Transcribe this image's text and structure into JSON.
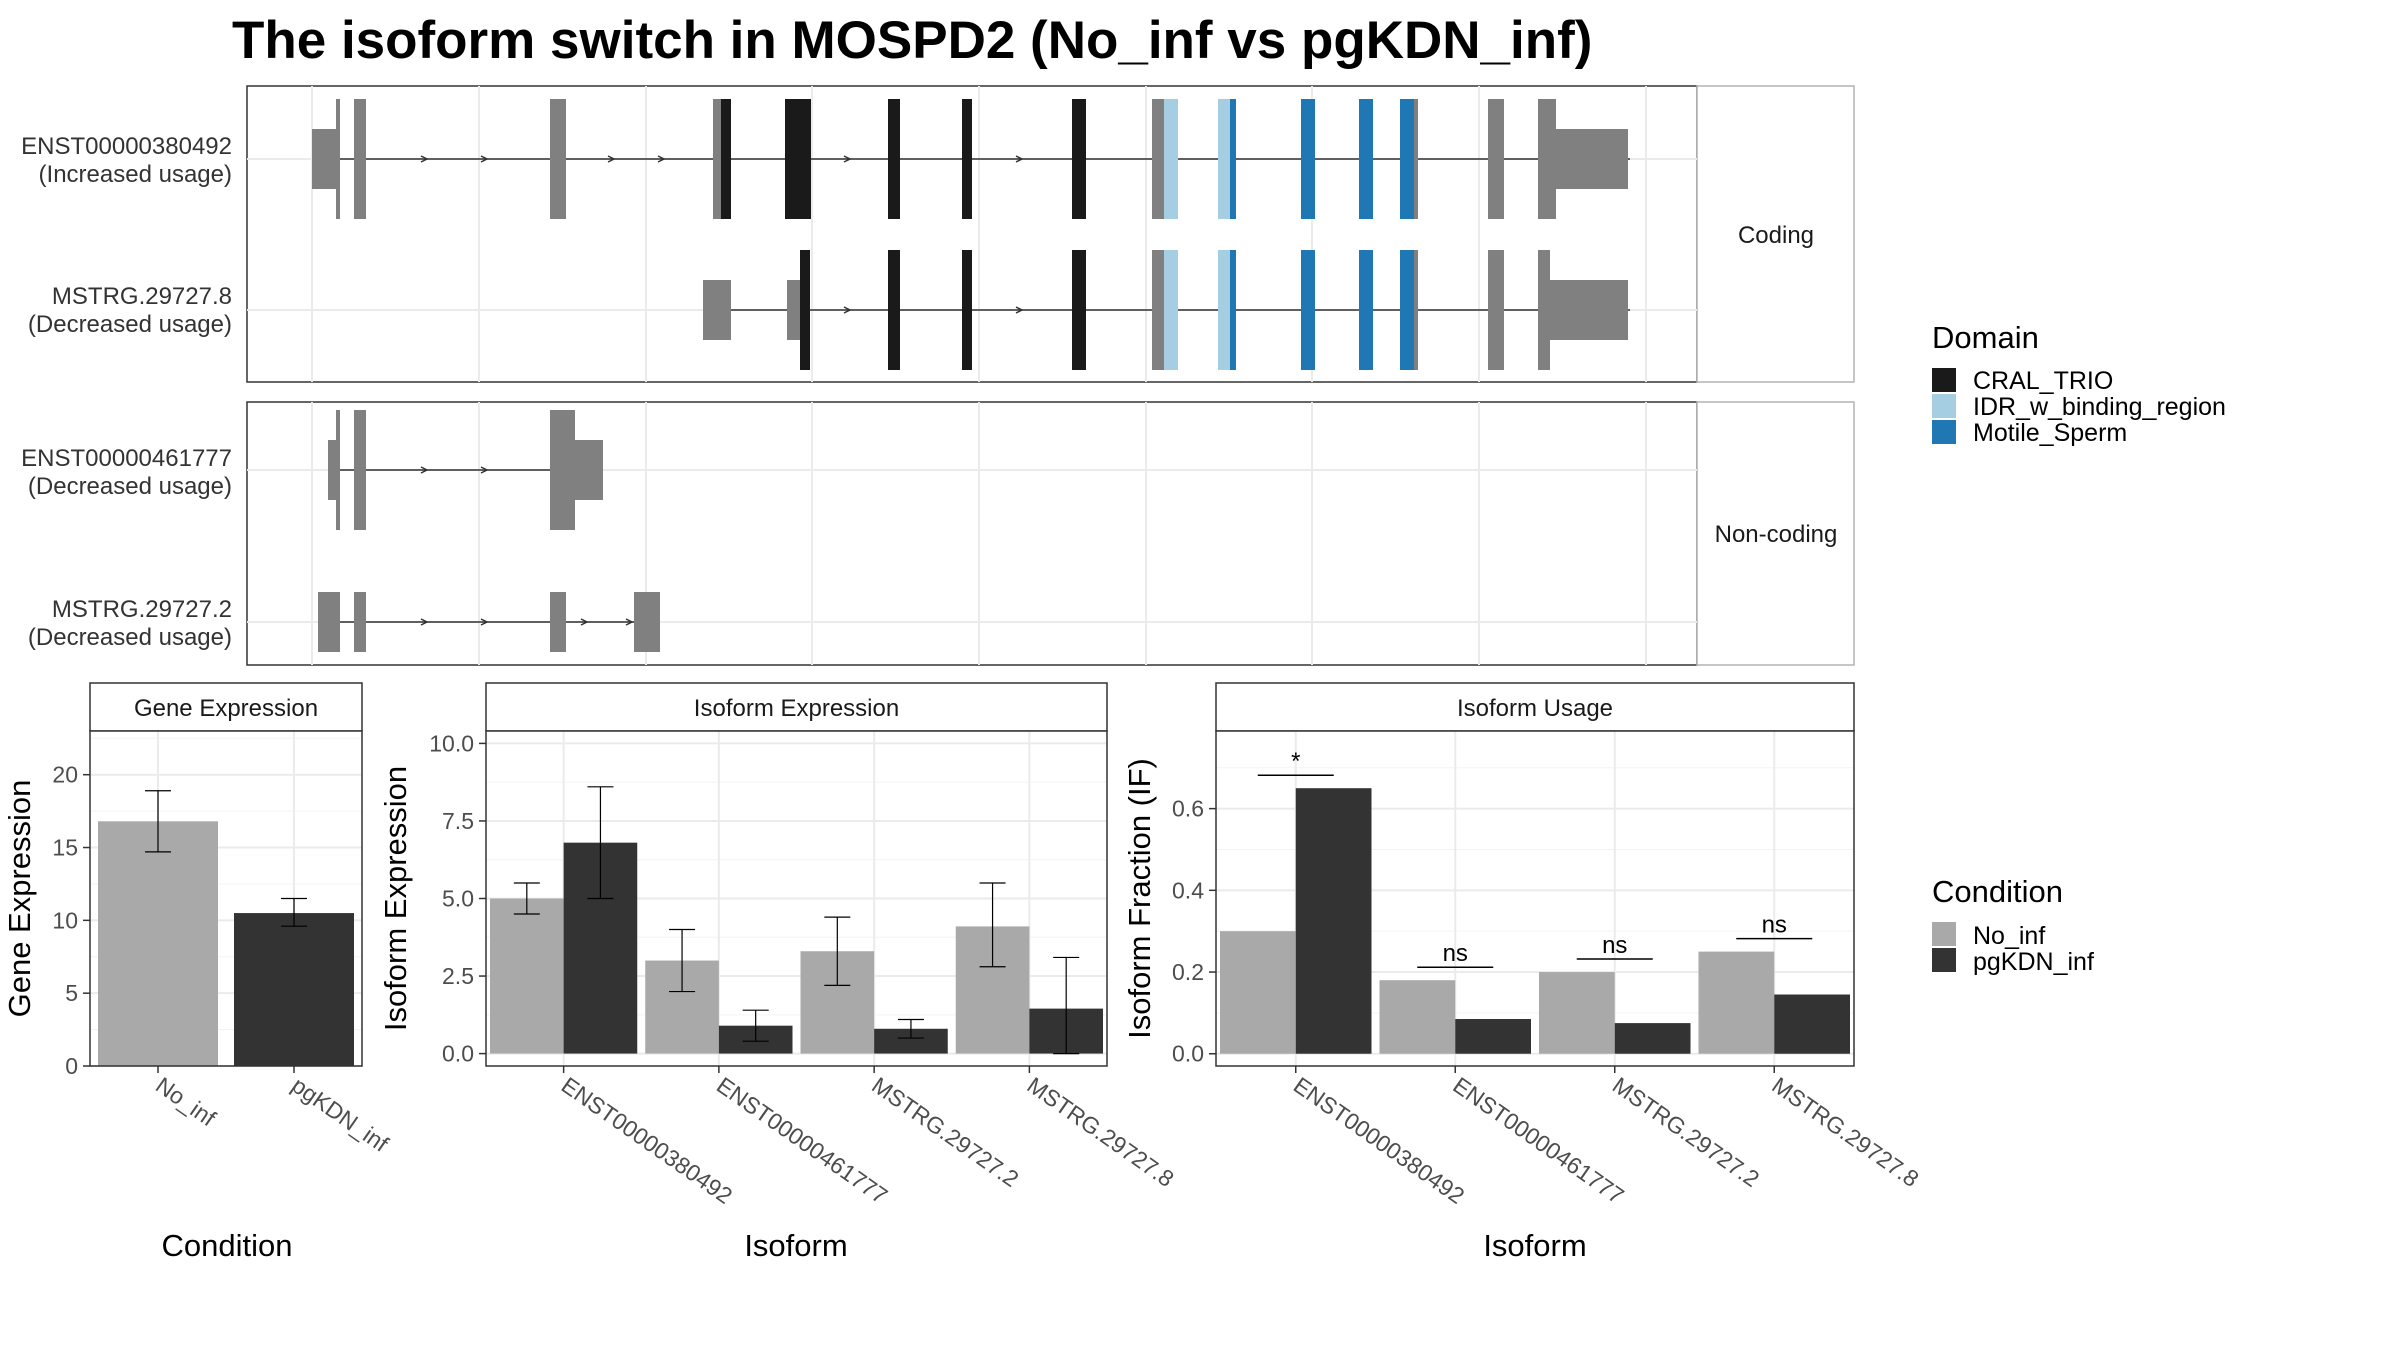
{
  "title": "The isoform switch in MOSPD2 (No_inf vs pgKDN_inf)",
  "colors": {
    "no_inf": "#a9a9a9",
    "pgkdn_inf": "#333333",
    "exon_default": "#808080",
    "CRAL_TRIO": "#1a1a1a",
    "IDR_w_binding_region": "#a6cee3",
    "Motile_Sperm": "#1f78b4",
    "grid": "#ebebeb",
    "panel_border": "#333333",
    "strip_border": "#b3b3b3"
  },
  "transcripts": {
    "facet_coding": "Coding",
    "facet_noncoding": "Non-coding",
    "rows": [
      {
        "id": "ENST00000380492",
        "label": "ENST00000380492",
        "status": "(Increased usage)",
        "facet": "coding"
      },
      {
        "id": "MSTRG.29727.8",
        "label": "MSTRG.29727.8",
        "status": "(Decreased usage)",
        "facet": "coding"
      },
      {
        "id": "ENST00000461777",
        "label": "ENST00000461777",
        "status": "(Decreased usage)",
        "facet": "noncoding"
      },
      {
        "id": "MSTRG.29727.2",
        "label": "MSTRG.29727.2",
        "status": "(Decreased usage)",
        "facet": "noncoding"
      }
    ]
  },
  "legend_domain": {
    "title": "Domain",
    "items": [
      {
        "label": "CRAL_TRIO",
        "color": "#1a1a1a"
      },
      {
        "label": "IDR_w_binding_region",
        "color": "#a6cee3"
      },
      {
        "label": "Motile_Sperm",
        "color": "#1f78b4"
      }
    ]
  },
  "legend_condition": {
    "title": "Condition",
    "items": [
      {
        "label": "No_inf",
        "color": "#a9a9a9"
      },
      {
        "label": "pgKDN_inf",
        "color": "#333333"
      }
    ]
  },
  "chart_data": [
    {
      "type": "bar",
      "title": "Gene Expression",
      "xlabel": "Condition",
      "ylabel": "Gene Expression",
      "ylim": [
        0,
        23
      ],
      "yticks": [
        0,
        5,
        10,
        15,
        20
      ],
      "categories": [
        "No_inf",
        "pgKDN_inf"
      ],
      "series": [
        {
          "name": "No_inf",
          "values": [
            16.8,
            null
          ],
          "err_low": [
            14.7,
            null
          ],
          "err_high": [
            18.9,
            null
          ]
        },
        {
          "name": "pgKDN_inf",
          "values": [
            null,
            10.5
          ],
          "err_low": [
            null,
            9.6
          ],
          "err_high": [
            null,
            11.5
          ]
        }
      ]
    },
    {
      "type": "bar",
      "title": "Isoform Expression",
      "xlabel": "Isoform",
      "ylabel": "Isoform Expression",
      "ylim": [
        -0.4,
        10.4
      ],
      "yticks": [
        0.0,
        2.5,
        5.0,
        7.5,
        10.0
      ],
      "ytick_labels": [
        "0.0",
        "2.5",
        "5.0",
        "7.5",
        "10.0"
      ],
      "categories": [
        "ENST00000380492",
        "ENST00000461777",
        "MSTRG.29727.2",
        "MSTRG.29727.8"
      ],
      "series": [
        {
          "name": "No_inf",
          "values": [
            5.0,
            3.0,
            3.3,
            4.1
          ],
          "err_low": [
            4.5,
            2.0,
            2.2,
            2.8
          ],
          "err_high": [
            5.5,
            4.0,
            4.4,
            5.5
          ]
        },
        {
          "name": "pgKDN_inf",
          "values": [
            6.8,
            0.9,
            0.8,
            1.45
          ],
          "err_low": [
            5.0,
            0.4,
            0.5,
            0.0
          ],
          "err_high": [
            8.6,
            1.4,
            1.1,
            3.1
          ]
        }
      ]
    },
    {
      "type": "bar",
      "title": "Isoform Usage",
      "xlabel": "Isoform",
      "ylabel": "Isoform Fraction (IF)",
      "ylim": [
        -0.03,
        0.79
      ],
      "yticks": [
        0.0,
        0.2,
        0.4,
        0.6
      ],
      "ytick_labels": [
        "0.0",
        "0.2",
        "0.4",
        "0.6"
      ],
      "categories": [
        "ENST00000380492",
        "ENST00000461777",
        "MSTRG.29727.2",
        "MSTRG.29727.8"
      ],
      "series": [
        {
          "name": "No_inf",
          "values": [
            0.3,
            0.18,
            0.2,
            0.25
          ]
        },
        {
          "name": "pgKDN_inf",
          "values": [
            0.65,
            0.085,
            0.075,
            0.145
          ]
        }
      ],
      "significance": [
        "*",
        "ns",
        "ns",
        "ns"
      ]
    }
  ]
}
